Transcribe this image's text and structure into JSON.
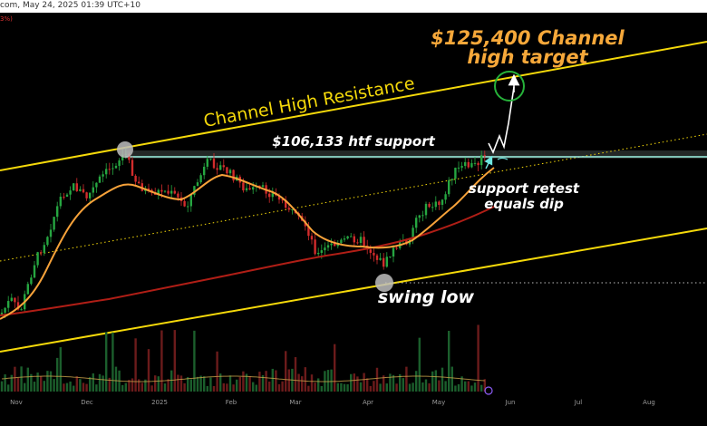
{
  "header": {
    "source_text": "com, May 24, 2025 01:39 UTC+10",
    "red_tag": "3%)"
  },
  "chart_data": {
    "type": "candlestick",
    "x_ticks": [
      "Nov",
      "Dec",
      "2025",
      "Feb",
      "Mar",
      "Apr",
      "May",
      "Jun",
      "Jul",
      "Aug"
    ],
    "annotations": {
      "target_line1": "$125,400 Channel",
      "target_line2": "high target",
      "resistance": "Channel High Resistance",
      "support": "$106,133 htf support",
      "retest_line1": "support retest",
      "retest_line2": "equals dip",
      "swing_low": "swing low"
    },
    "levels": {
      "htf_support": 106133,
      "channel_high_target": 125400
    },
    "colors": {
      "channel": "#f5d90a",
      "support_line": "#9ff5e6",
      "ema": "#f7a23a",
      "sma": "#b01e16",
      "bull": "#26a641",
      "bear": "#d22c2c",
      "target_text": "#f6a83a",
      "circle": "#26b23a"
    }
  }
}
